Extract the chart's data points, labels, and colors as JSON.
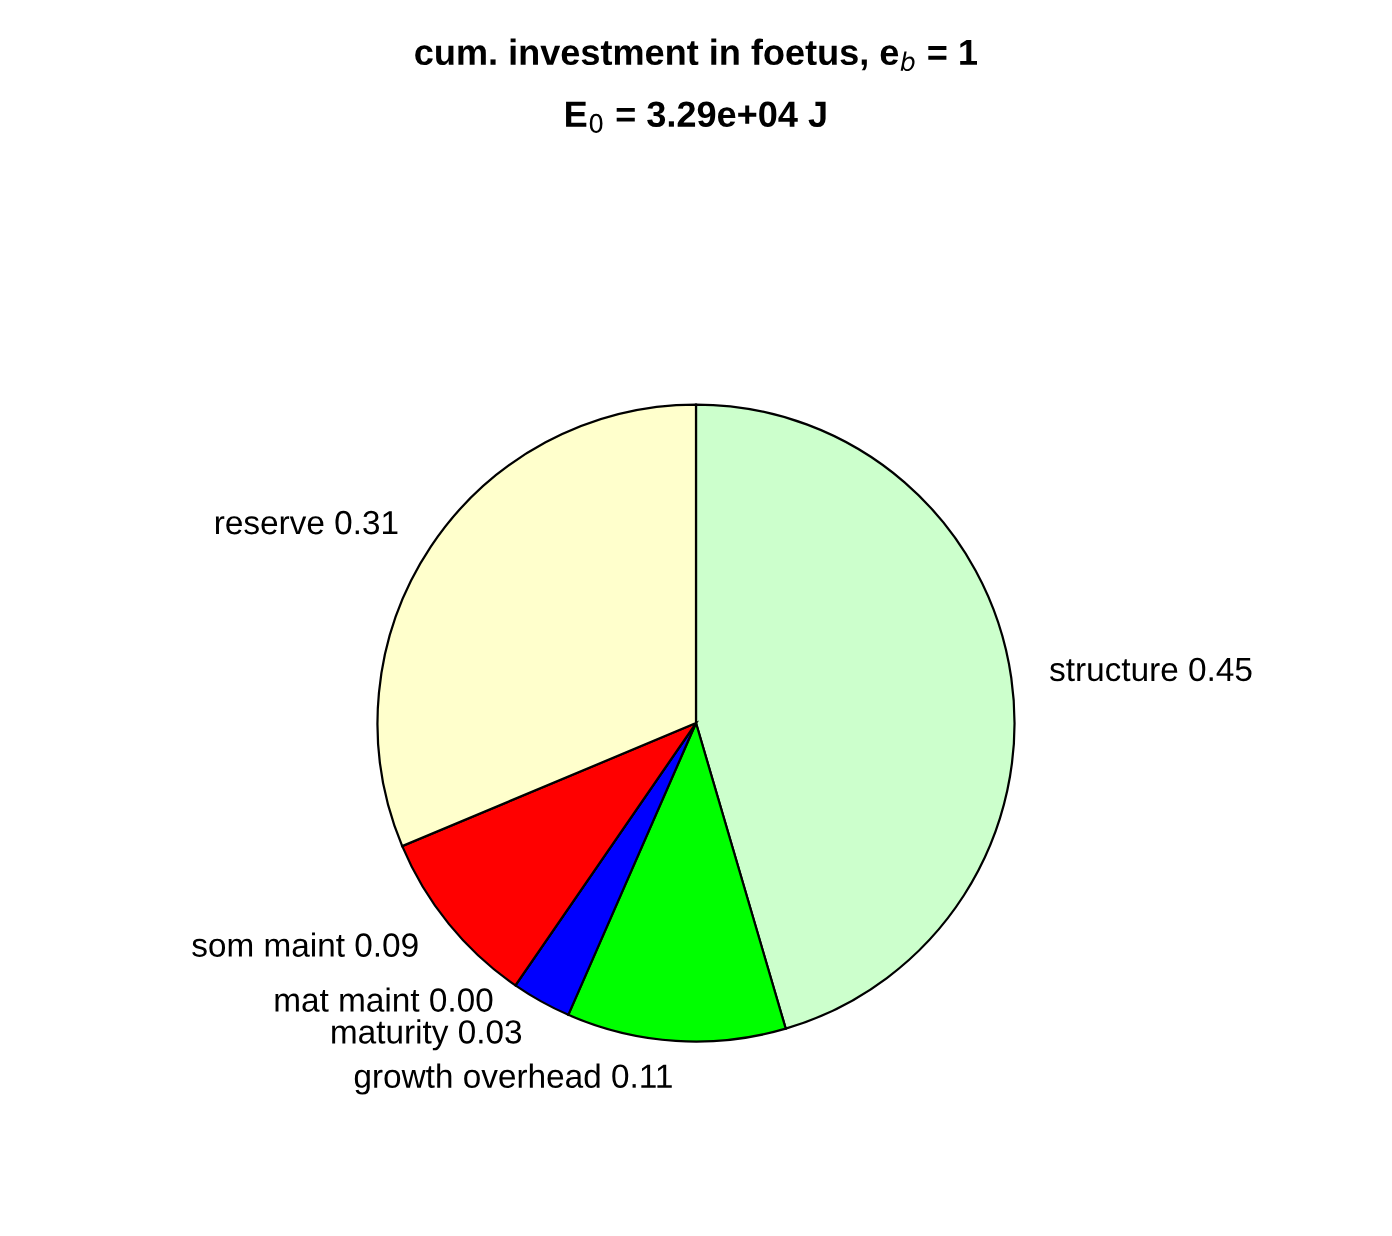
{
  "chart_data": {
    "type": "pie",
    "title": "cum. investment in foetus, e$_{b}$ = 1",
    "subtitle": "E$_{0}$ = 3.29e+04 J",
    "categories": [
      "structure",
      "growth overhead",
      "maturity",
      "mat maint",
      "som maint",
      "reserve"
    ],
    "values": [
      0.45,
      0.11,
      0.03,
      0.0,
      0.09,
      0.31
    ],
    "value_labels": [
      "0.45",
      "0.11",
      "0.03",
      "0.00",
      "0.09",
      "0.31"
    ],
    "colors": [
      "#ccffcc",
      "#00ff00",
      "#0000ff",
      "#00ffff",
      "#ff0000",
      "#ffffcc"
    ],
    "legend": false
  }
}
